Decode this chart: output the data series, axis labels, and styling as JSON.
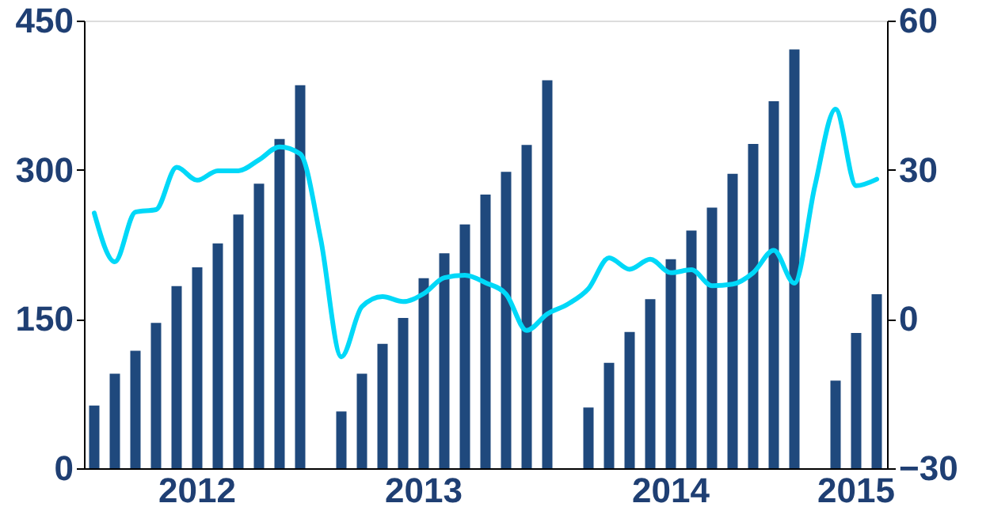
{
  "chart_data": {
    "type": "bar",
    "categories": [
      null,
      null,
      null,
      null,
      null,
      "2012",
      null,
      null,
      null,
      null,
      null,
      null,
      null,
      null,
      null,
      null,
      "2013",
      null,
      null,
      null,
      null,
      null,
      null,
      null,
      null,
      null,
      null,
      null,
      "2014",
      null,
      null,
      null,
      null,
      null,
      null,
      null,
      null,
      "2015",
      null
    ],
    "series": [
      {
        "color": "#1f497d",
        "values": [
          63,
          95,
          118,
          146,
          183,
          202,
          226,
          255,
          286,
          331,
          385,
          null,
          57,
          95,
          125,
          151,
          191,
          216,
          245,
          275,
          298,
          325,
          390,
          null,
          61,
          106,
          137,
          170,
          210,
          239,
          262,
          296,
          326,
          369,
          421,
          null,
          88,
          136,
          175
        ]
      },
      {
        "type": "line",
        "axis": "y2",
        "color": "#00d8f8",
        "values": [
          21.3,
          11.5,
          21.5,
          22,
          30.5,
          27.9,
          29.8,
          29.8,
          32,
          34.6,
          33.2,
          16,
          -7.6,
          2.5,
          4.5,
          3.5,
          5.1,
          8.3,
          8.8,
          7.3,
          5,
          -2.3,
          1,
          3,
          6.1,
          12.3,
          10,
          12,
          9.3,
          9.9,
          6.7,
          7,
          9.3,
          13.8,
          7.2,
          26.8,
          42.2,
          26.8,
          28.1
        ]
      }
    ],
    "ylim": [
      0,
      450
    ],
    "yticks": [
      0,
      150,
      300,
      450
    ],
    "y2lim": [
      -30,
      60
    ],
    "y2ticks": [
      -30,
      0,
      30,
      60
    ],
    "grid": false
  }
}
